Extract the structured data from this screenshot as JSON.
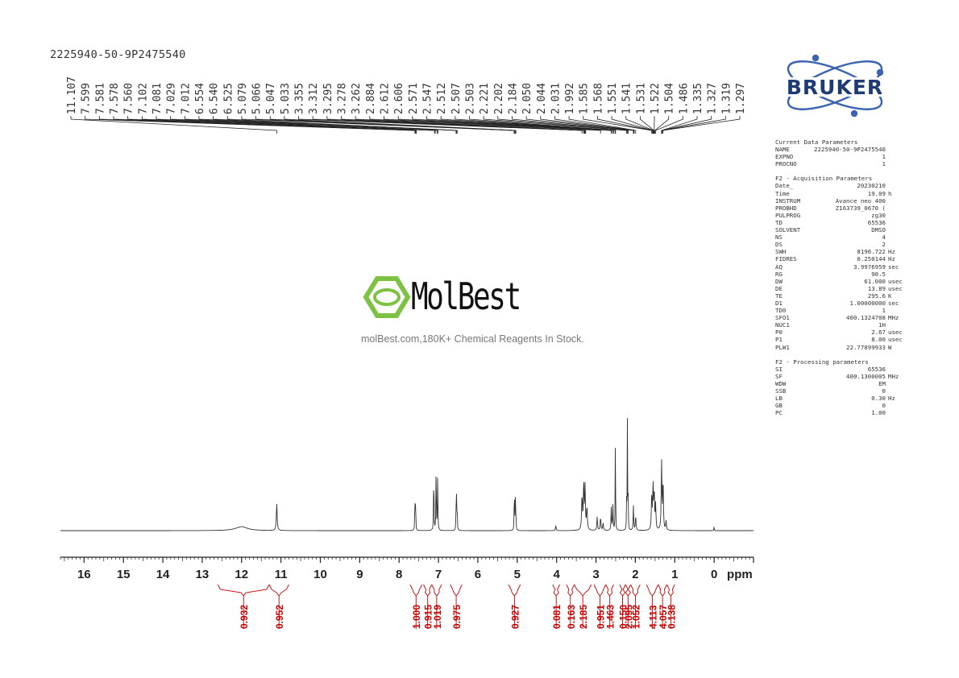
{
  "sample_id": "2225940-50-9P2475540",
  "chart_data": {
    "type": "line",
    "title": "",
    "xlabel": "ppm",
    "x_axis_reversed": true,
    "xlim": [
      16.6,
      -1.0
    ],
    "x_ticks": [
      16,
      15,
      14,
      13,
      12,
      11,
      10,
      9,
      8,
      7,
      6,
      5,
      4,
      3,
      2,
      1,
      0
    ],
    "x_tick_labels": [
      "16",
      "15",
      "14",
      "13",
      "12",
      "11",
      "10",
      "9",
      "8",
      "7",
      "6",
      "5",
      "4",
      "3",
      "2",
      "1",
      "0"
    ],
    "axis_unit_label": "ppm",
    "peak_labels": [
      "11.107",
      "7.599",
      "7.581",
      "7.578",
      "7.560",
      "7.102",
      "7.081",
      "7.029",
      "7.012",
      "6.554",
      "6.540",
      "6.525",
      "5.079",
      "5.066",
      "5.047",
      "5.033",
      "3.355",
      "3.312",
      "3.295",
      "3.278",
      "3.262",
      "2.884",
      "2.612",
      "2.606",
      "2.571",
      "2.547",
      "2.512",
      "2.507",
      "2.503",
      "2.221",
      "2.202",
      "2.184",
      "2.050",
      "2.044",
      "2.031",
      "1.992",
      "1.585",
      "1.568",
      "1.551",
      "1.541",
      "1.531",
      "1.522",
      "1.504",
      "1.486",
      "1.335",
      "1.327",
      "1.319",
      "1.297"
    ],
    "peaks": [
      {
        "ppm": 12.0,
        "height": 0.035,
        "width": 0.18
      },
      {
        "ppm": 11.107,
        "height": 0.24,
        "width": 0.012
      },
      {
        "ppm": 7.599,
        "height": 0.31,
        "width": 0.005
      },
      {
        "ppm": 7.581,
        "height": 0.33,
        "width": 0.005
      },
      {
        "ppm": 7.12,
        "height": 0.56,
        "width": 0.006
      },
      {
        "ppm": 7.06,
        "height": 0.6,
        "width": 0.006
      },
      {
        "ppm": 7.02,
        "height": 0.52,
        "width": 0.006
      },
      {
        "ppm": 6.554,
        "height": 0.22,
        "width": 0.005
      },
      {
        "ppm": 6.54,
        "height": 0.3,
        "width": 0.005
      },
      {
        "ppm": 6.525,
        "height": 0.22,
        "width": 0.005
      },
      {
        "ppm": 5.079,
        "height": 0.18,
        "width": 0.005
      },
      {
        "ppm": 5.066,
        "height": 0.26,
        "width": 0.005
      },
      {
        "ppm": 5.047,
        "height": 0.26,
        "width": 0.005
      },
      {
        "ppm": 5.033,
        "height": 0.18,
        "width": 0.005
      },
      {
        "ppm": 4.02,
        "height": 0.05,
        "width": 0.008
      },
      {
        "ppm": 3.355,
        "height": 0.3,
        "width": 0.012
      },
      {
        "ppm": 3.312,
        "height": 0.43,
        "width": 0.01
      },
      {
        "ppm": 3.278,
        "height": 0.38,
        "width": 0.01
      },
      {
        "ppm": 3.23,
        "height": 0.2,
        "width": 0.012
      },
      {
        "ppm": 2.97,
        "height": 0.12,
        "width": 0.01
      },
      {
        "ppm": 2.884,
        "height": 0.12,
        "width": 0.01
      },
      {
        "ppm": 2.82,
        "height": 0.07,
        "width": 0.01
      },
      {
        "ppm": 2.612,
        "height": 0.2,
        "width": 0.008
      },
      {
        "ppm": 2.571,
        "height": 0.22,
        "width": 0.008
      },
      {
        "ppm": 2.507,
        "height": 0.95,
        "width": 0.005
      },
      {
        "ppm": 2.221,
        "height": 0.3,
        "width": 0.005
      },
      {
        "ppm": 2.202,
        "height": 0.98,
        "width": 0.005
      },
      {
        "ppm": 2.184,
        "height": 0.3,
        "width": 0.005
      },
      {
        "ppm": 2.05,
        "height": 0.22,
        "width": 0.008
      },
      {
        "ppm": 1.992,
        "height": 0.13,
        "width": 0.01
      },
      {
        "ppm": 1.585,
        "height": 0.32,
        "width": 0.01
      },
      {
        "ppm": 1.551,
        "height": 0.4,
        "width": 0.01
      },
      {
        "ppm": 1.522,
        "height": 0.34,
        "width": 0.01
      },
      {
        "ppm": 1.486,
        "height": 0.22,
        "width": 0.01
      },
      {
        "ppm": 1.335,
        "height": 0.62,
        "width": 0.01
      },
      {
        "ppm": 1.297,
        "height": 0.45,
        "width": 0.01
      },
      {
        "ppm": 1.22,
        "height": 0.08,
        "width": 0.01
      },
      {
        "ppm": 0.0,
        "height": 0.05,
        "width": 0.004
      }
    ],
    "integrals": [
      {
        "label": "0.932",
        "from": 12.6,
        "to": 11.3
      },
      {
        "label": "0.952",
        "from": 11.3,
        "to": 10.8
      },
      {
        "label": "1.000",
        "from": 7.72,
        "to": 7.42
      },
      {
        "label": "0.915",
        "from": 7.38,
        "to": 7.17
      },
      {
        "label": "1.019",
        "from": 7.17,
        "to": 6.92
      },
      {
        "label": "0.975",
        "from": 6.7,
        "to": 6.4
      },
      {
        "label": "0.927",
        "from": 5.22,
        "to": 4.92
      },
      {
        "label": "0.081",
        "from": 4.1,
        "to": 3.92
      },
      {
        "label": "0.163",
        "from": 3.75,
        "to": 3.55
      },
      {
        "label": "2.185",
        "from": 3.55,
        "to": 3.12
      },
      {
        "label": "0.951",
        "from": 3.05,
        "to": 2.75
      },
      {
        "label": "1.463",
        "from": 2.75,
        "to": 2.55
      },
      {
        "label": "0.150",
        "from": 2.4,
        "to": 2.25
      },
      {
        "label": "2.095",
        "from": 2.25,
        "to": 2.12
      },
      {
        "label": "1.052",
        "from": 2.12,
        "to": 1.88
      },
      {
        "label": "4.113",
        "from": 1.72,
        "to": 1.42
      },
      {
        "label": "4.057",
        "from": 1.42,
        "to": 1.2
      },
      {
        "label": "0.138",
        "from": 1.2,
        "to": 1.0
      }
    ],
    "grid": false,
    "line_color": "#333333",
    "integral_color": "#cc0000"
  },
  "parameters": {
    "sections": [
      {
        "title": "Current Data Parameters",
        "rows": [
          {
            "k": "NAME",
            "v": "2225940-50-9P2475540",
            "u": ""
          },
          {
            "k": "EXPNO",
            "v": "1",
            "u": ""
          },
          {
            "k": "PROCNO",
            "v": "1",
            "u": ""
          }
        ]
      },
      {
        "title": "F2 - Acquisition Parameters",
        "rows": [
          {
            "k": "Date_",
            "v": "20230210",
            "u": ""
          },
          {
            "k": "Time",
            "v": "19.09",
            "u": "h"
          },
          {
            "k": "INSTRUM",
            "v": "Avance neo 400",
            "u": ""
          },
          {
            "k": "PROBHD",
            "v": "Z163739_0670 (",
            "u": ""
          },
          {
            "k": "PULPROG",
            "v": "zg30",
            "u": ""
          },
          {
            "k": "TD",
            "v": "65536",
            "u": ""
          },
          {
            "k": "SOLVENT",
            "v": "DMSO",
            "u": ""
          },
          {
            "k": "NS",
            "v": "4",
            "u": ""
          },
          {
            "k": "DS",
            "v": "2",
            "u": ""
          },
          {
            "k": "SWH",
            "v": "8196.722",
            "u": "Hz"
          },
          {
            "k": "FIDRES",
            "v": "0.250144",
            "u": "Hz"
          },
          {
            "k": "AQ",
            "v": "3.9976959",
            "u": "sec"
          },
          {
            "k": "RG",
            "v": "90.5",
            "u": ""
          },
          {
            "k": "DW",
            "v": "61.000",
            "u": "usec"
          },
          {
            "k": "DE",
            "v": "13.89",
            "u": "usec"
          },
          {
            "k": "TE",
            "v": "295.6",
            "u": "K"
          },
          {
            "k": "D1",
            "v": "1.00000000",
            "u": "sec"
          },
          {
            "k": "TD0",
            "v": "1",
            "u": ""
          },
          {
            "k": "SFO1",
            "v": "400.1324708",
            "u": "MHz"
          },
          {
            "k": "NUC1",
            "v": "1H",
            "u": ""
          },
          {
            "k": "P0",
            "v": "2.67",
            "u": "usec"
          },
          {
            "k": "P1",
            "v": "8.00",
            "u": "usec"
          },
          {
            "k": "PLW1",
            "v": "22.77899933",
            "u": "W"
          }
        ]
      },
      {
        "title": "F2 - Processing parameters",
        "rows": [
          {
            "k": "SI",
            "v": "65536",
            "u": ""
          },
          {
            "k": "SF",
            "v": "400.1300005",
            "u": "MHz"
          },
          {
            "k": "WDW",
            "v": "EM",
            "u": ""
          },
          {
            "k": "SSB",
            "v": "0",
            "u": ""
          },
          {
            "k": "LB",
            "v": "0.30",
            "u": "Hz"
          },
          {
            "k": "GB",
            "v": "0",
            "u": ""
          },
          {
            "k": "PC",
            "v": "1.00",
            "u": ""
          }
        ]
      }
    ]
  },
  "watermark": {
    "name": "MolBest",
    "tagline": "molBest.com,180K+ Chemical Reagents In Stock.",
    "color": "#7dc242"
  },
  "logo": {
    "text": "BRUKER",
    "color": "#1f3b73"
  }
}
